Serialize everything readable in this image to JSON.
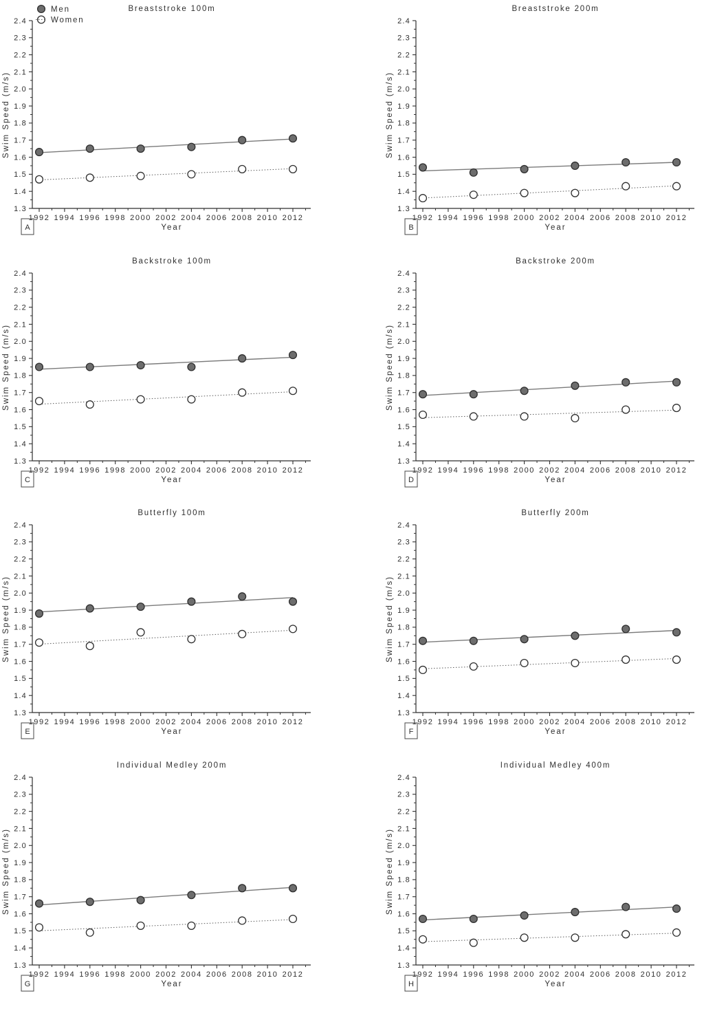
{
  "figure": {
    "legend": {
      "men": "Men",
      "women": "Women"
    },
    "ylabel": "Swim Speed (m/s)",
    "xlabel": "Year",
    "ytick_labels": [
      "1.3",
      "1.4",
      "1.5",
      "1.6",
      "1.7",
      "1.8",
      "1.9",
      "2.0",
      "2.1",
      "2.2",
      "2.3",
      "2.4"
    ],
    "xtick_labels": [
      "1992",
      "1994",
      "1996",
      "1998",
      "2000",
      "2002",
      "2004",
      "2006",
      "2008",
      "2010",
      "2012"
    ],
    "colors": {
      "men_marker_fill": "#6d6d6d",
      "women_marker_fill": "#ffffff",
      "marker_stroke": "#2e2e2e",
      "men_line": "#7a7a7a",
      "women_line": "#5a5a5a",
      "axis": "#2e2e2e",
      "text": "#2e2e2e"
    }
  },
  "chart_data": [
    {
      "type": "scatter",
      "panel_label": "A",
      "title": "Breaststroke 100m",
      "xlabel": "Year",
      "ylabel": "Swim Speed (m/s)",
      "x": [
        1992,
        1996,
        2000,
        2004,
        2008,
        2012
      ],
      "xlim": [
        1991.4,
        2013.4
      ],
      "ylim": [
        1.3,
        2.4
      ],
      "grid": false,
      "legend_position": "top-left",
      "trend": "linear-regression",
      "series": [
        {
          "name": "Men",
          "marker": "filled-circle",
          "line": "solid",
          "values": [
            1.63,
            1.65,
            1.65,
            1.66,
            1.7,
            1.71
          ]
        },
        {
          "name": "Women",
          "marker": "open-circle",
          "line": "dotted",
          "values": [
            1.47,
            1.48,
            1.49,
            1.5,
            1.53,
            1.53
          ]
        }
      ]
    },
    {
      "type": "scatter",
      "panel_label": "B",
      "title": "Breaststroke 200m",
      "xlabel": "Year",
      "ylabel": "Swim Speed (m/s)",
      "x": [
        1992,
        1996,
        2000,
        2004,
        2008,
        2012
      ],
      "xlim": [
        1991.4,
        2013.4
      ],
      "ylim": [
        1.3,
        2.4
      ],
      "grid": false,
      "legend_position": "none",
      "trend": "linear-regression",
      "series": [
        {
          "name": "Men",
          "marker": "filled-circle",
          "line": "solid",
          "values": [
            1.54,
            1.51,
            1.53,
            1.55,
            1.57,
            1.57
          ]
        },
        {
          "name": "Women",
          "marker": "open-circle",
          "line": "dotted",
          "values": [
            1.36,
            1.38,
            1.39,
            1.39,
            1.43,
            1.43
          ]
        }
      ]
    },
    {
      "type": "scatter",
      "panel_label": "C",
      "title": "Backstroke 100m",
      "xlabel": "Year",
      "ylabel": "Swim Speed (m/s)",
      "x": [
        1992,
        1996,
        2000,
        2004,
        2008,
        2012
      ],
      "xlim": [
        1991.4,
        2013.4
      ],
      "ylim": [
        1.3,
        2.4
      ],
      "grid": false,
      "legend_position": "none",
      "trend": "linear-regression",
      "series": [
        {
          "name": "Men",
          "marker": "filled-circle",
          "line": "solid",
          "values": [
            1.85,
            1.85,
            1.86,
            1.85,
            1.9,
            1.92
          ]
        },
        {
          "name": "Women",
          "marker": "open-circle",
          "line": "dotted",
          "values": [
            1.65,
            1.63,
            1.66,
            1.66,
            1.7,
            1.71
          ]
        }
      ]
    },
    {
      "type": "scatter",
      "panel_label": "D",
      "title": "Backstroke 200m",
      "xlabel": "Year",
      "ylabel": "Swim Speed (m/s)",
      "x": [
        1992,
        1996,
        2000,
        2004,
        2008,
        2012
      ],
      "xlim": [
        1991.4,
        2013.4
      ],
      "ylim": [
        1.3,
        2.4
      ],
      "grid": false,
      "legend_position": "none",
      "trend": "linear-regression",
      "series": [
        {
          "name": "Men",
          "marker": "filled-circle",
          "line": "solid",
          "values": [
            1.69,
            1.69,
            1.71,
            1.74,
            1.76,
            1.76
          ]
        },
        {
          "name": "Women",
          "marker": "open-circle",
          "line": "dotted",
          "values": [
            1.57,
            1.56,
            1.56,
            1.55,
            1.6,
            1.61
          ]
        }
      ]
    },
    {
      "type": "scatter",
      "panel_label": "E",
      "title": "Butterfly 100m",
      "xlabel": "Year",
      "ylabel": "Swim Speed (m/s)",
      "x": [
        1992,
        1996,
        2000,
        2004,
        2008,
        2012
      ],
      "xlim": [
        1991.4,
        2013.4
      ],
      "ylim": [
        1.3,
        2.4
      ],
      "grid": false,
      "legend_position": "none",
      "trend": "linear-regression",
      "series": [
        {
          "name": "Men",
          "marker": "filled-circle",
          "line": "solid",
          "values": [
            1.88,
            1.91,
            1.92,
            1.95,
            1.98,
            1.95
          ]
        },
        {
          "name": "Women",
          "marker": "open-circle",
          "line": "dotted",
          "values": [
            1.71,
            1.69,
            1.77,
            1.73,
            1.76,
            1.79
          ]
        }
      ]
    },
    {
      "type": "scatter",
      "panel_label": "F",
      "title": "Butterfly 200m",
      "xlabel": "Year",
      "ylabel": "Swim Speed (m/s)",
      "x": [
        1992,
        1996,
        2000,
        2004,
        2008,
        2012
      ],
      "xlim": [
        1991.4,
        2013.4
      ],
      "ylim": [
        1.3,
        2.4
      ],
      "grid": false,
      "legend_position": "none",
      "trend": "linear-regression",
      "series": [
        {
          "name": "Men",
          "marker": "filled-circle",
          "line": "solid",
          "values": [
            1.72,
            1.72,
            1.73,
            1.75,
            1.79,
            1.77
          ]
        },
        {
          "name": "Women",
          "marker": "open-circle",
          "line": "dotted",
          "values": [
            1.55,
            1.57,
            1.59,
            1.59,
            1.61,
            1.61
          ]
        }
      ]
    },
    {
      "type": "scatter",
      "panel_label": "G",
      "title": "Individual Medley 200m",
      "xlabel": "Year",
      "ylabel": "Swim Speed (m/s)",
      "x": [
        1992,
        1996,
        2000,
        2004,
        2008,
        2012
      ],
      "xlim": [
        1991.4,
        2013.4
      ],
      "ylim": [
        1.3,
        2.4
      ],
      "grid": false,
      "legend_position": "none",
      "trend": "linear-regression",
      "series": [
        {
          "name": "Men",
          "marker": "filled-circle",
          "line": "solid",
          "values": [
            1.66,
            1.67,
            1.68,
            1.71,
            1.75,
            1.75
          ]
        },
        {
          "name": "Women",
          "marker": "open-circle",
          "line": "dotted",
          "values": [
            1.52,
            1.49,
            1.53,
            1.53,
            1.56,
            1.57
          ]
        }
      ]
    },
    {
      "type": "scatter",
      "panel_label": "H",
      "title": "Individual Medley 400m",
      "xlabel": "Year",
      "ylabel": "Swim Speed (m/s)",
      "x": [
        1992,
        1996,
        2000,
        2004,
        2008,
        2012
      ],
      "xlim": [
        1991.4,
        2013.4
      ],
      "ylim": [
        1.3,
        2.4
      ],
      "grid": false,
      "legend_position": "none",
      "trend": "linear-regression",
      "series": [
        {
          "name": "Men",
          "marker": "filled-circle",
          "line": "solid",
          "values": [
            1.57,
            1.57,
            1.59,
            1.61,
            1.64,
            1.63
          ]
        },
        {
          "name": "Women",
          "marker": "open-circle",
          "line": "dotted",
          "values": [
            1.45,
            1.43,
            1.46,
            1.46,
            1.48,
            1.49
          ]
        }
      ]
    }
  ]
}
